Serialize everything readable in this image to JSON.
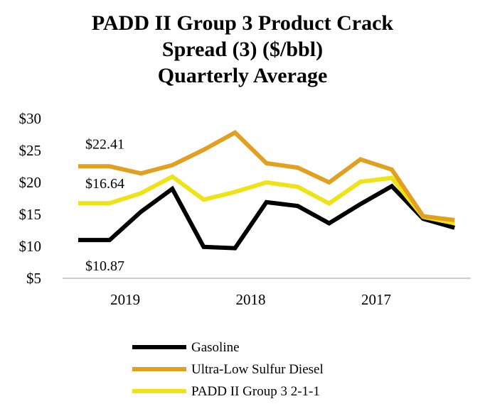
{
  "chart_data": {
    "type": "line",
    "title": [
      "PADD II Group 3 Product Crack",
      "Spread (3) ($/bbl)",
      "Quarterly Average"
    ],
    "xlabel": "",
    "ylabel": "",
    "ylim": [
      5,
      30
    ],
    "yticks": [
      "$5",
      "$10",
      "$15",
      "$20",
      "$25",
      "$30"
    ],
    "ytick_values": [
      5,
      10,
      15,
      20,
      25,
      30
    ],
    "grid": false,
    "legend_position": "bottom",
    "x_group_labels": [
      {
        "label": "2019",
        "center": 2.5
      },
      {
        "label": "2018",
        "center": 6.5
      },
      {
        "label": "2017",
        "center": 10.5
      }
    ],
    "x": [
      1,
      2,
      3,
      4,
      5,
      6,
      7,
      8,
      9,
      10,
      11,
      12,
      13
    ],
    "series": [
      {
        "name": "Gasoline",
        "color": "#000000",
        "values": [
          10.87,
          10.87,
          15.3,
          18.9,
          9.8,
          9.6,
          16.8,
          16.2,
          13.5,
          16.5,
          19.3,
          14.2,
          12.8
        ]
      },
      {
        "name": "Ultra-Low Sulfur Diesel",
        "color": "#E1A020",
        "values": [
          22.41,
          22.41,
          21.3,
          22.6,
          25.0,
          27.7,
          22.9,
          22.2,
          19.9,
          23.5,
          21.9,
          14.6,
          14.0
        ]
      },
      {
        "name": "PADD II Group 3 2-1-1",
        "color": "#EEE316",
        "values": [
          16.64,
          16.64,
          18.2,
          20.8,
          17.2,
          18.4,
          19.9,
          19.2,
          16.6,
          20.0,
          20.6,
          14.5,
          13.5
        ]
      }
    ],
    "annotations": [
      {
        "text": "$22.41",
        "series": 1,
        "point": 0
      },
      {
        "text": "$16.64",
        "series": 2,
        "point": 0
      },
      {
        "text": "$10.87",
        "series": 0,
        "point": 0
      }
    ]
  }
}
